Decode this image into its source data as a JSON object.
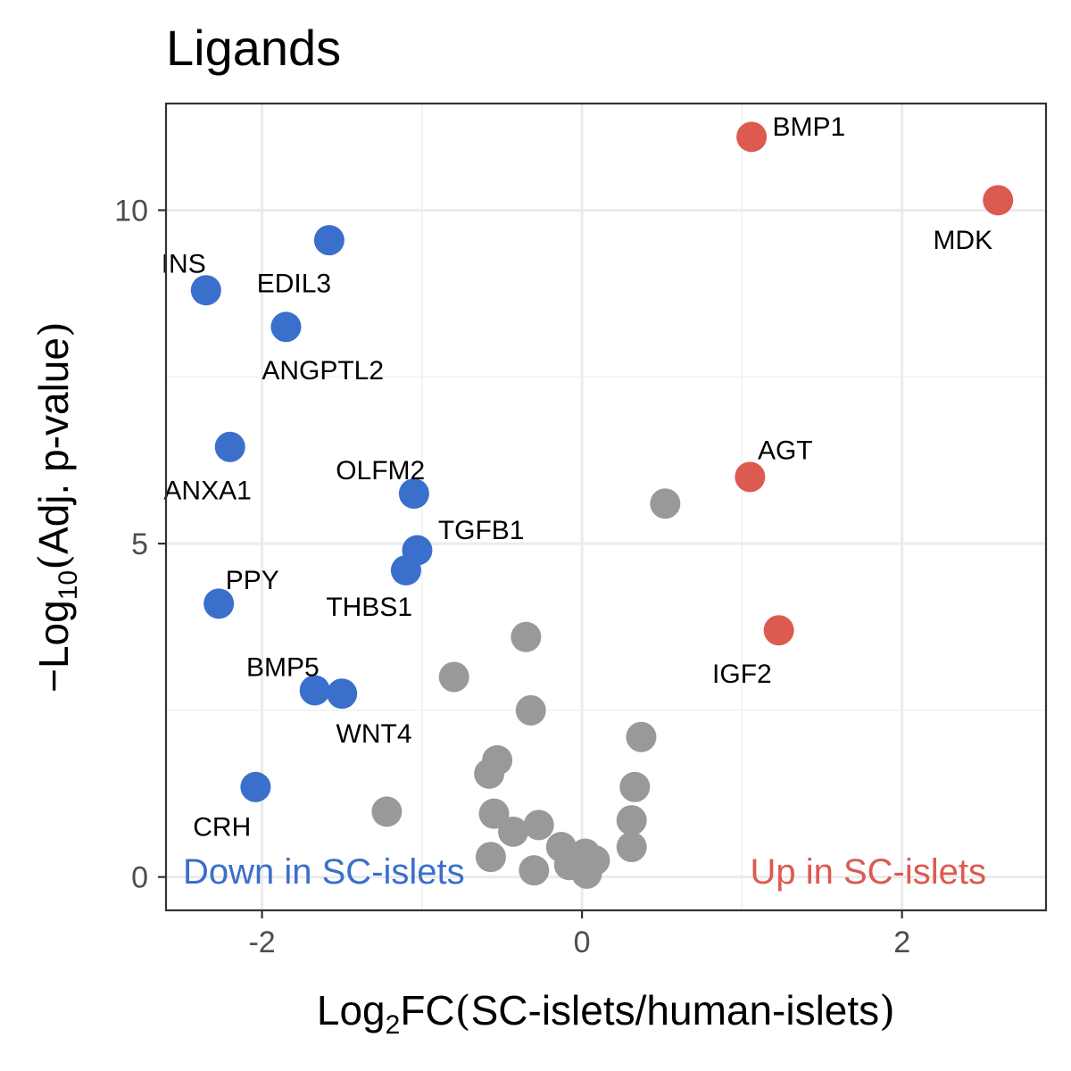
{
  "chart_data": {
    "type": "scatter",
    "title": "Ligands",
    "xlabel": {
      "prefix": "Log",
      "subscript": "2",
      "stem": "FC",
      "open": "(",
      "inner": "SC-islets/human-islets",
      "close": ")"
    },
    "ylabel": {
      "prefix": "−Log",
      "subscript": "10",
      "open": "(",
      "inner": "Adj. p-value",
      "close": ")"
    },
    "xlim": [
      -2.6,
      2.9
    ],
    "ylim": [
      -0.5,
      11.6
    ],
    "x_ticks": [
      -2,
      0,
      2
    ],
    "x_tick_labels": [
      "-2",
      "0",
      "2"
    ],
    "y_ticks": [
      0,
      5,
      10
    ],
    "y_tick_labels": [
      "0",
      "5",
      "10"
    ],
    "x_minor": [
      -1,
      1
    ],
    "y_minor": [
      2.5,
      7.5
    ],
    "grid": true,
    "colors": {
      "down": "#3A6FCC",
      "up": "#DC5A50",
      "ns": "#999999"
    },
    "annotations": [
      {
        "text": "Down in SC-islets",
        "color": "#3A6FCC",
        "position": "bottom-left"
      },
      {
        "text": "Up in SC-islets",
        "color": "#DC5A50",
        "position": "bottom-right"
      }
    ],
    "points": [
      {
        "x": 1.06,
        "y": 11.1,
        "group": "up",
        "label": "BMP1",
        "lx": 1.19,
        "ly": 11.25,
        "anchor": "start"
      },
      {
        "x": 2.6,
        "y": 10.15,
        "group": "up",
        "label": "MDK",
        "lx": 2.38,
        "ly": 9.55,
        "anchor": "middle"
      },
      {
        "x": 1.05,
        "y": 6.0,
        "group": "up",
        "label": "AGT",
        "lx": 1.27,
        "ly": 6.4,
        "anchor": "middle"
      },
      {
        "x": 1.23,
        "y": 3.7,
        "group": "up",
        "label": "IGF2",
        "lx": 1.0,
        "ly": 3.05,
        "anchor": "middle"
      },
      {
        "x": -1.58,
        "y": 9.55,
        "group": "down",
        "label": "EDIL3",
        "lx": -1.8,
        "ly": 8.9,
        "anchor": "middle"
      },
      {
        "x": -2.35,
        "y": 8.8,
        "group": "down",
        "label": "INS",
        "lx": -2.49,
        "ly": 9.2,
        "anchor": "middle"
      },
      {
        "x": -1.85,
        "y": 8.25,
        "group": "down",
        "label": "ANGPTL2",
        "lx": -1.62,
        "ly": 7.6,
        "anchor": "middle"
      },
      {
        "x": -2.2,
        "y": 6.45,
        "group": "down",
        "label": "ANXA1",
        "lx": -2.34,
        "ly": 5.8,
        "anchor": "middle"
      },
      {
        "x": -1.05,
        "y": 5.75,
        "group": "down",
        "label": "OLFM2",
        "lx": -1.26,
        "ly": 6.1,
        "anchor": "middle"
      },
      {
        "x": -1.03,
        "y": 4.9,
        "group": "down",
        "label": "TGFB1",
        "lx": -0.63,
        "ly": 5.2,
        "anchor": "middle"
      },
      {
        "x": -1.1,
        "y": 4.6,
        "group": "down",
        "label": "THBS1",
        "lx": -1.33,
        "ly": 4.05,
        "anchor": "middle"
      },
      {
        "x": -2.27,
        "y": 4.1,
        "group": "down",
        "label": "PPY",
        "lx": -2.06,
        "ly": 4.45,
        "anchor": "middle"
      },
      {
        "x": -1.67,
        "y": 2.8,
        "group": "down",
        "label": "BMP5",
        "lx": -1.87,
        "ly": 3.15,
        "anchor": "middle"
      },
      {
        "x": -1.5,
        "y": 2.75,
        "group": "down",
        "label": "WNT4",
        "lx": -1.3,
        "ly": 2.15,
        "anchor": "middle"
      },
      {
        "x": -2.04,
        "y": 1.35,
        "group": "down",
        "label": "CRH",
        "lx": -2.25,
        "ly": 0.75,
        "anchor": "middle"
      },
      {
        "x": 0.52,
        "y": 5.6,
        "group": "ns"
      },
      {
        "x": -0.35,
        "y": 3.6,
        "group": "ns"
      },
      {
        "x": -0.8,
        "y": 3.0,
        "group": "ns"
      },
      {
        "x": -0.32,
        "y": 2.5,
        "group": "ns"
      },
      {
        "x": 0.37,
        "y": 2.1,
        "group": "ns"
      },
      {
        "x": -0.53,
        "y": 1.75,
        "group": "ns"
      },
      {
        "x": -0.58,
        "y": 1.55,
        "group": "ns"
      },
      {
        "x": 0.33,
        "y": 1.35,
        "group": "ns"
      },
      {
        "x": -1.22,
        "y": 0.98,
        "group": "ns"
      },
      {
        "x": -0.55,
        "y": 0.95,
        "group": "ns"
      },
      {
        "x": 0.31,
        "y": 0.85,
        "group": "ns"
      },
      {
        "x": -0.27,
        "y": 0.78,
        "group": "ns"
      },
      {
        "x": -0.43,
        "y": 0.68,
        "group": "ns"
      },
      {
        "x": 0.31,
        "y": 0.45,
        "group": "ns"
      },
      {
        "x": -0.13,
        "y": 0.45,
        "group": "ns"
      },
      {
        "x": -0.57,
        "y": 0.3,
        "group": "ns"
      },
      {
        "x": 0.02,
        "y": 0.35,
        "group": "ns"
      },
      {
        "x": 0.08,
        "y": 0.25,
        "group": "ns"
      },
      {
        "x": -0.08,
        "y": 0.18,
        "group": "ns"
      },
      {
        "x": -0.3,
        "y": 0.1,
        "group": "ns"
      },
      {
        "x": 0.03,
        "y": 0.05,
        "group": "ns"
      }
    ]
  }
}
